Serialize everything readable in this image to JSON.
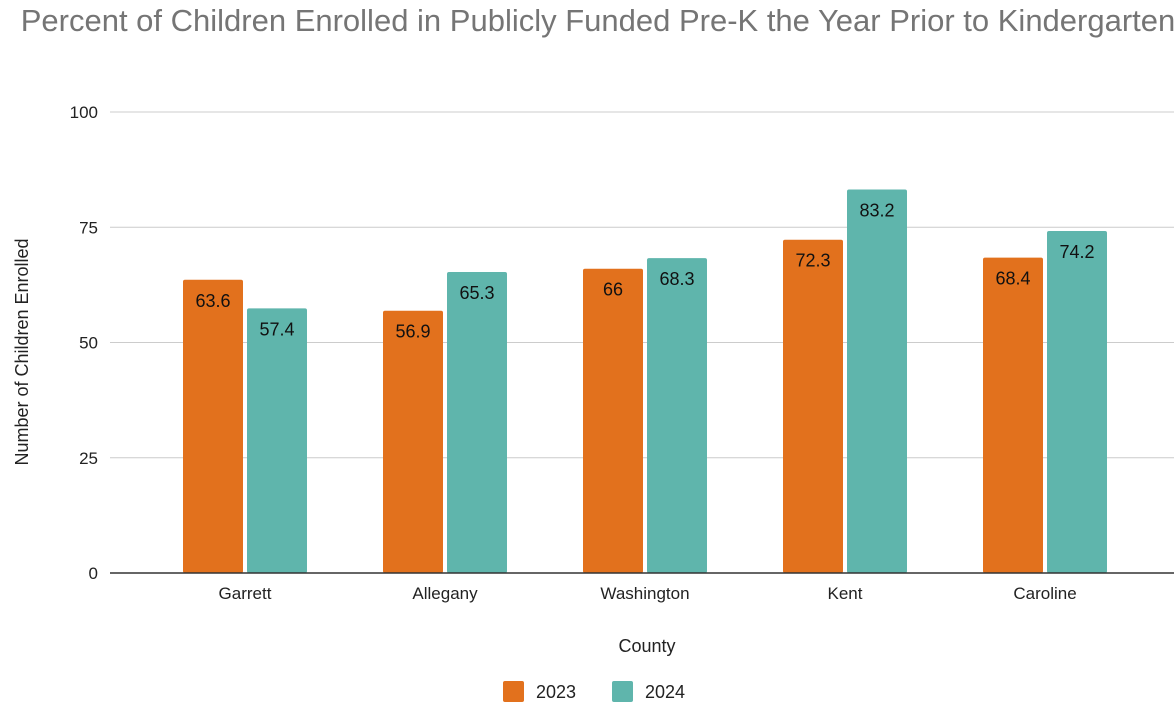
{
  "chart_data": {
    "type": "bar",
    "title": "Percent of Children Enrolled in Publicly Funded Pre-K the Year Prior to Kindergarten",
    "xlabel": "County",
    "ylabel": "Number of Children Enrolled",
    "categories": [
      "Garrett",
      "Allegany",
      "Washington",
      "Kent",
      "Caroline"
    ],
    "series": [
      {
        "name": "2023",
        "color": "#e2711d",
        "values": [
          63.6,
          56.9,
          66,
          72.3,
          68.4
        ]
      },
      {
        "name": "2024",
        "color": "#5fb5ac",
        "values": [
          57.4,
          65.3,
          68.3,
          83.2,
          74.2
        ]
      }
    ],
    "ylim": [
      0,
      100
    ],
    "yticks": [
      "0",
      "25",
      "50",
      "75",
      "100"
    ],
    "grid": true,
    "legend_position": "bottom",
    "data_labels": true
  }
}
